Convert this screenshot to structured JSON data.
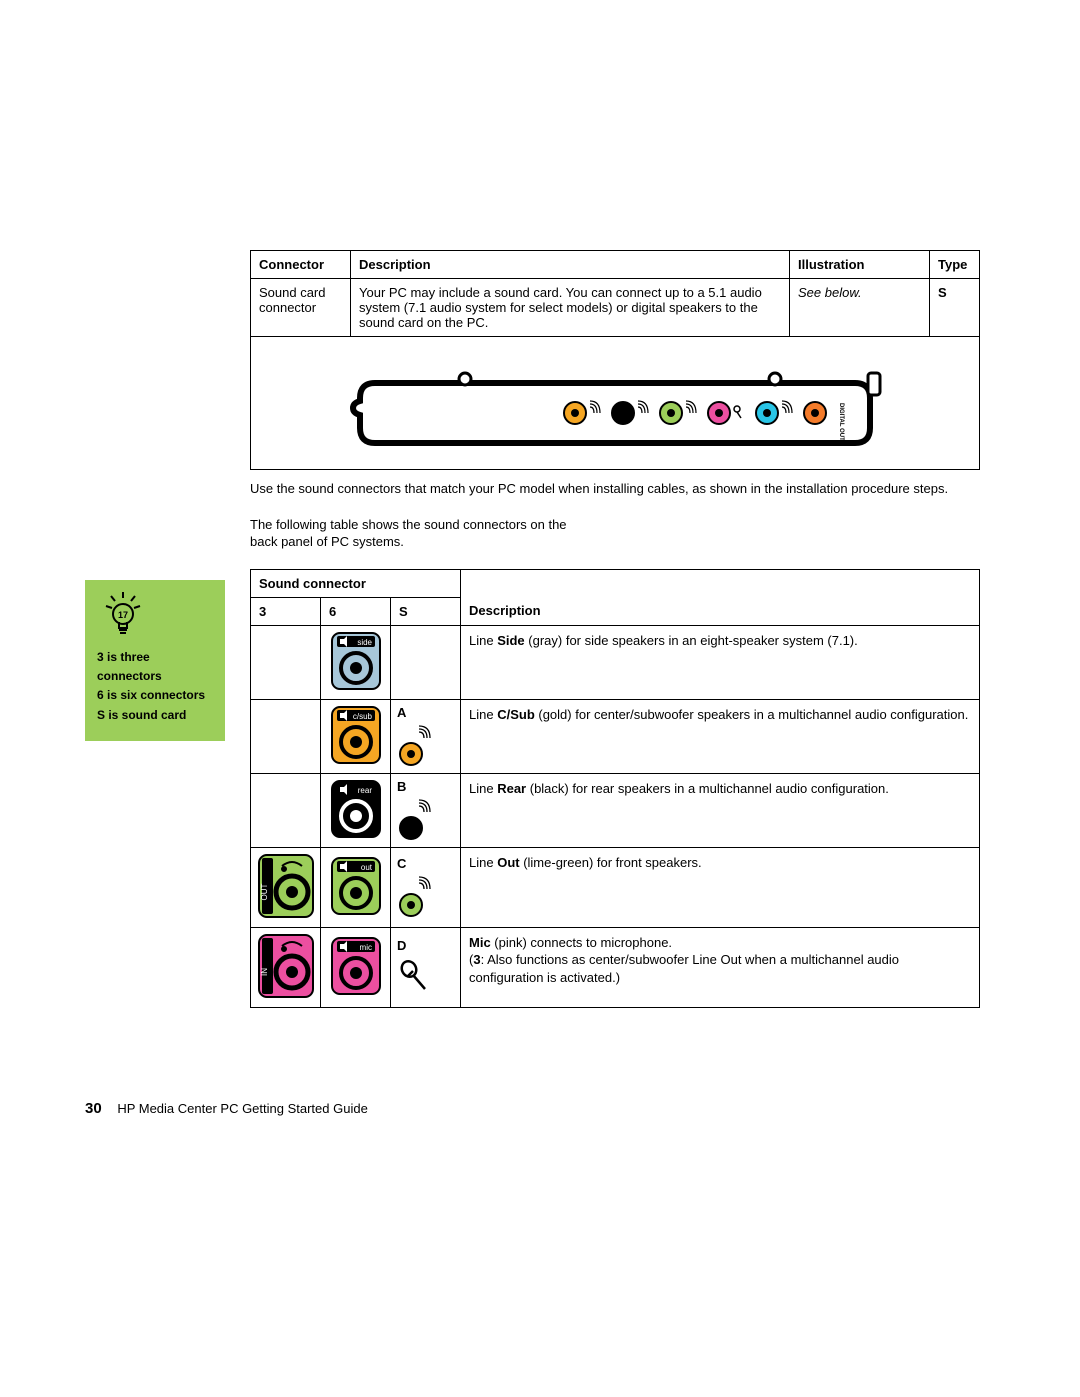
{
  "connector_table": {
    "headers": {
      "c1": "Connector",
      "c2": "Description",
      "c3": "Illustration",
      "c4": "Type"
    },
    "row": {
      "connector": "Sound card connector",
      "description": "Your PC may include a sound card. You can connect up to a 5.1 audio system (7.1 audio system for select models) or digital speakers to the sound card on the PC.",
      "illustration": "See below.",
      "type": "S"
    },
    "card": {
      "bracket_color": "#000000",
      "jacks": [
        {
          "fill": "#f5a623",
          "label_side": "wave"
        },
        {
          "fill": "#000000",
          "label_side": "wave"
        },
        {
          "fill": "#9cce5a",
          "label_side": "wave"
        },
        {
          "fill": "#ec4fa0",
          "label_side": "mic"
        },
        {
          "fill": "#29c5e6",
          "label_side": "wave"
        },
        {
          "fill": "#f47b2a",
          "label_side": "none"
        }
      ],
      "digital_out_label": "DIGITAL OUT"
    }
  },
  "paragraphs": {
    "p1": "Use the sound connectors that match your PC model when installing cables, as shown in the installation procedure steps.",
    "p2": "The following table shows the sound connectors on the back panel of PC systems."
  },
  "tip": {
    "line1": "3 is three connectors",
    "line2": "6 is six connectors",
    "line3": "S is sound card",
    "bg": "#9cce5a"
  },
  "sound_table": {
    "header_span": "Sound connector",
    "sub_headers": {
      "c1": "3",
      "c2": "6",
      "c3": "S",
      "c4": "Description"
    },
    "rows": [
      {
        "col3_label": "",
        "icon6": {
          "bg": "#a7c7d9",
          "tag": "side",
          "tag_bg": "#000000"
        },
        "s_letter": "",
        "s_jack_color": null,
        "desc_pre": "Line ",
        "desc_bold": "Side",
        "desc_post": " (gray) for side speakers in an eight-speaker system (7.1)."
      },
      {
        "col3_label": "",
        "icon6": {
          "bg": "#f5a623",
          "tag": "c/sub",
          "tag_bg": "#000000"
        },
        "s_letter": "A",
        "s_jack_color": "#f5a623",
        "desc_pre": "Line ",
        "desc_bold": "C/Sub",
        "desc_post": " (gold) for center/subwoofer speakers in a multichannel audio configuration."
      },
      {
        "col3_label": "",
        "icon6": {
          "bg": "#000000",
          "tag": "rear",
          "tag_bg": "#000000",
          "fg": "#ffffff"
        },
        "s_letter": "B",
        "s_jack_color": "#000000",
        "desc_pre": "Line ",
        "desc_bold": "Rear",
        "desc_post": " (black) for rear speakers in a multichannel audio configuration."
      },
      {
        "col3_label": "out",
        "icon3": {
          "bg": "#9cce5a",
          "side": "OUT"
        },
        "icon6": {
          "bg": "#9cce5a",
          "tag": "out",
          "tag_bg": "#000000"
        },
        "s_letter": "C",
        "s_jack_color": "#9cce5a",
        "desc_pre": "Line ",
        "desc_bold": "Out",
        "desc_post": " (lime-green) for front speakers."
      },
      {
        "col3_label": "mic",
        "icon3": {
          "bg": "#ec4fa0",
          "side": "IN"
        },
        "icon6": {
          "bg": "#ec4fa0",
          "tag": "mic",
          "tag_bg": "#000000"
        },
        "s_letter": "D",
        "s_jack_color": "#ec4fa0",
        "s_mic": true,
        "desc_pre": "",
        "desc_bold": "Mic",
        "desc_post": " (pink) connects to microphone.",
        "desc_extra": "(3: Also functions as center/subwoofer Line Out when a multichannel audio configuration is activated.)",
        "desc_extra_bold": "3"
      }
    ]
  },
  "footer": {
    "page": "30",
    "title": "HP Media Center PC Getting Started Guide"
  }
}
